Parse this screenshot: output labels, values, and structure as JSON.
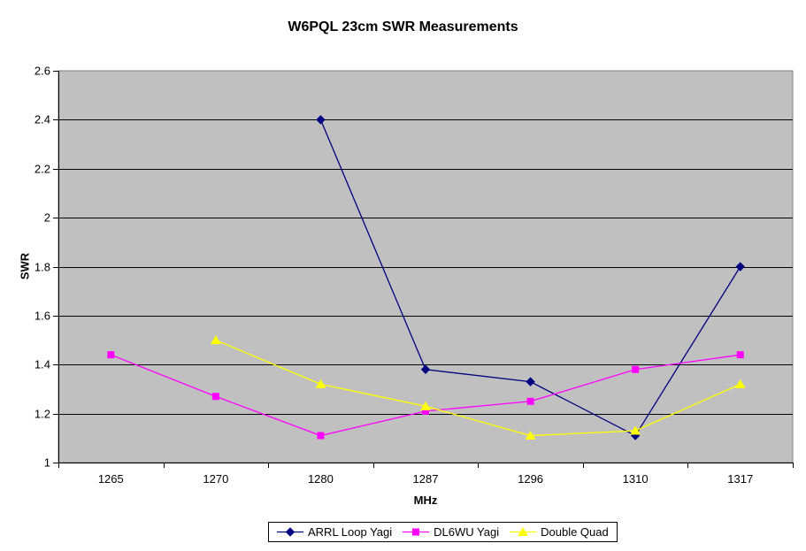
{
  "chart_data": {
    "type": "line",
    "title": "W6PQL 23cm SWR Measurements",
    "xlabel": "MHz",
    "ylabel": "SWR",
    "categories": [
      "1265",
      "1270",
      "1280",
      "1287",
      "1296",
      "1310",
      "1317"
    ],
    "series": [
      {
        "name": "ARRL Loop Yagi",
        "color": "#000080",
        "marker": "diamond",
        "values": [
          null,
          null,
          2.4,
          1.38,
          1.33,
          1.11,
          1.8
        ]
      },
      {
        "name": "DL6WU Yagi",
        "color": "#FF00FF",
        "marker": "square",
        "values": [
          1.44,
          1.27,
          1.11,
          1.21,
          1.25,
          1.38,
          1.44
        ]
      },
      {
        "name": "Double Quad",
        "color": "#FFFF00",
        "marker": "triangle",
        "values": [
          null,
          1.5,
          1.32,
          1.23,
          1.11,
          1.13,
          1.32
        ]
      }
    ],
    "ylim": [
      1,
      2.6
    ],
    "ytick_step": 0.2,
    "ytick_labels": [
      "1",
      "1.2",
      "1.4",
      "1.6",
      "1.8",
      "2",
      "2.2",
      "2.4",
      "2.6"
    ],
    "grid": "horizontal",
    "legend_position": "bottom",
    "colors": {
      "plot_background": "#C0C0C0",
      "plot_border": "#808080",
      "gridline": "#000000",
      "axis": "#000000",
      "chart_background": "#FFFFFF",
      "text": "#000000"
    }
  }
}
